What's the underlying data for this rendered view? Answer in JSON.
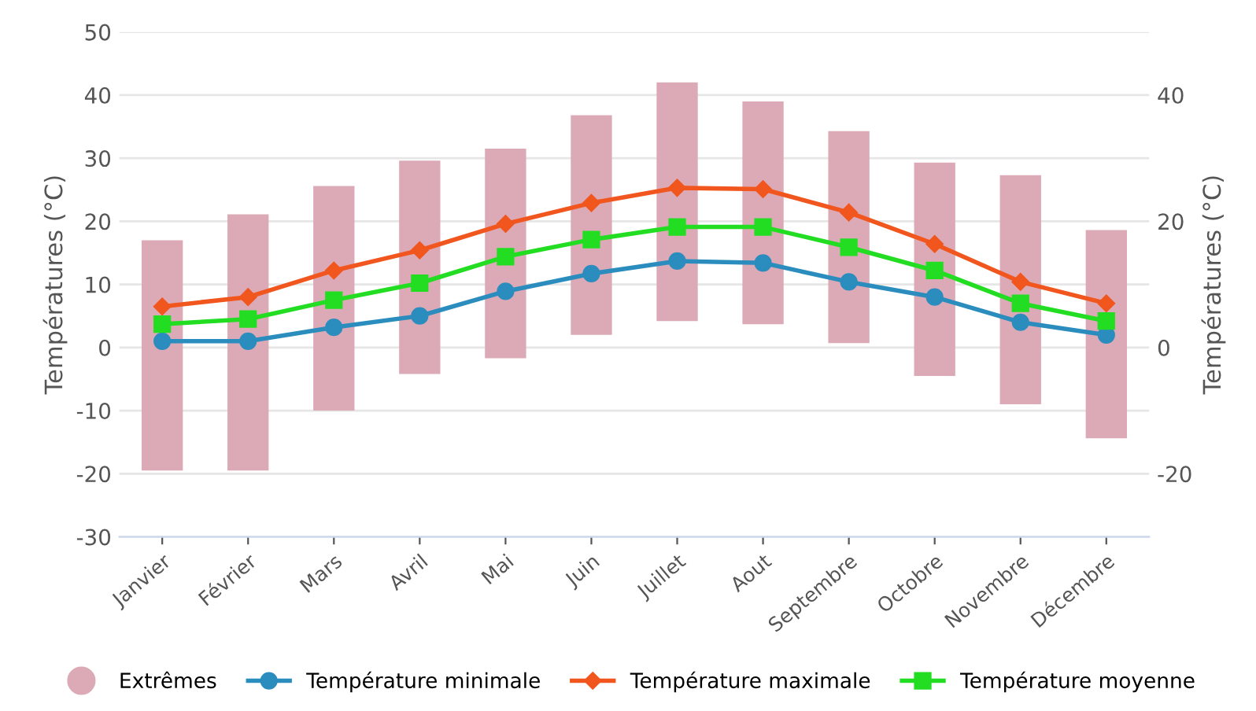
{
  "chart_data": {
    "type": "bar",
    "ylabel": "Températures (°C)",
    "y2label": "Températures (°C)",
    "categories": [
      "Janvier",
      "Février",
      "Mars",
      "Avril",
      "Mai",
      "Juin",
      "Juillet",
      "Aout",
      "Septembre",
      "Octobre",
      "Novembre",
      "Décembre"
    ],
    "series": [
      {
        "name": "Extrêmes",
        "color": "#dcaab6",
        "base": [
          -19.5,
          -19.5,
          -10,
          -4.2,
          -1.7,
          2,
          4.2,
          3.7,
          0.7,
          -4.5,
          -9,
          -14.4
        ],
        "values": [
          36.5,
          40.6,
          35.6,
          33.8,
          33.2,
          34.8,
          37.8,
          35.3,
          33.6,
          33.8,
          36.3,
          33
        ]
      },
      {
        "name": "Température minimale",
        "type": "line",
        "color": "#2b8cbe",
        "marker": "circle",
        "values": [
          1,
          1,
          3.2,
          5,
          8.9,
          11.7,
          13.7,
          13.4,
          10.4,
          8,
          4,
          2
        ]
      },
      {
        "name": "Température maximale",
        "type": "line",
        "color": "#f0561d",
        "marker": "diamond",
        "values": [
          6.5,
          8,
          12.2,
          15.4,
          19.6,
          22.9,
          25.3,
          25.1,
          21.4,
          16.4,
          10.4,
          7
        ]
      },
      {
        "name": "Température moyenne",
        "type": "line",
        "color": "#22dd22",
        "marker": "square",
        "values": [
          3.7,
          4.5,
          7.5,
          10.2,
          14.4,
          17.1,
          19.1,
          19.1,
          15.9,
          12.2,
          7,
          4.2
        ]
      }
    ],
    "ylim": [
      -30,
      50
    ],
    "yticks": [
      -30,
      -20,
      -10,
      0,
      10,
      20,
      30,
      40,
      50
    ],
    "y2lim": [
      -30,
      50
    ],
    "y2ticks": [
      -20,
      0,
      20,
      40
    ],
    "grid": "y",
    "legend": "bottom",
    "line_style": "solid"
  }
}
